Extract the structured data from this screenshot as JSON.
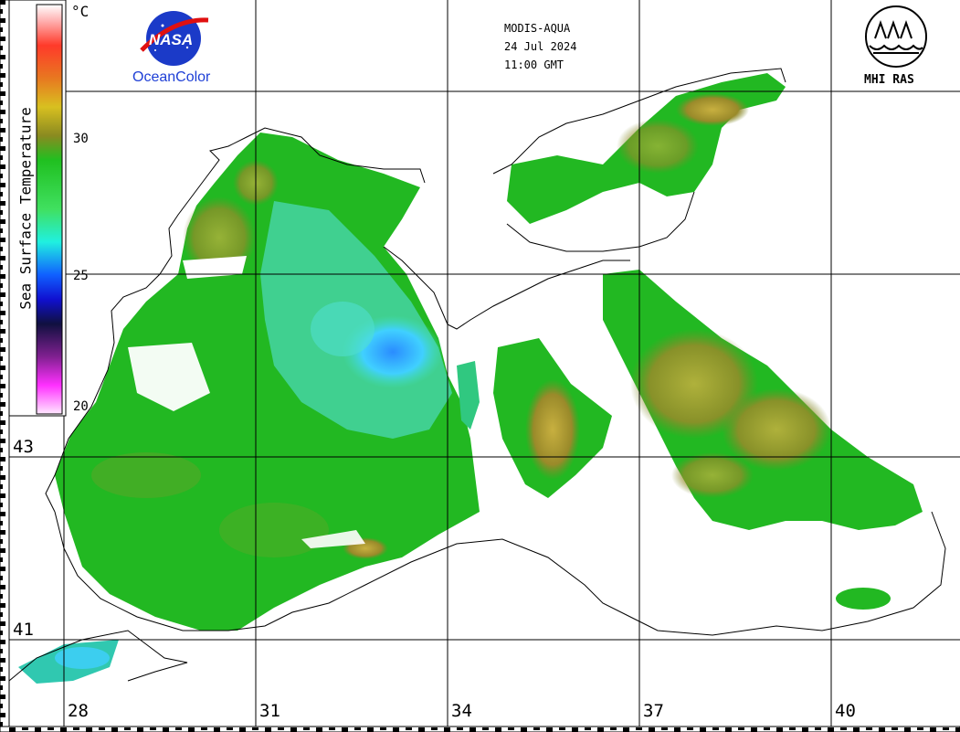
{
  "header": {
    "sensor": "MODIS-AQUA",
    "date": "24 Jul 2024",
    "time": "11:00 GMT"
  },
  "logos": {
    "nasa_text": "NASA",
    "oceancolor_text": "OceanColor",
    "mhi_text": "MHI RAS"
  },
  "colorbar": {
    "title": "Sea Surface Temperature",
    "unit": "°C",
    "ticks": [
      "30",
      "25",
      "20"
    ]
  },
  "grid": {
    "latitudes": [
      "43",
      "41"
    ],
    "longitudes": [
      "28",
      "31",
      "34",
      "37",
      "40"
    ]
  },
  "colors": {
    "cold": "#1a9bff",
    "cyan": "#33e0ff",
    "green": "#20c020",
    "olive": "#9a8a2a",
    "gold": "#c8b040",
    "coast": "#000000",
    "land": "#ffffff"
  }
}
